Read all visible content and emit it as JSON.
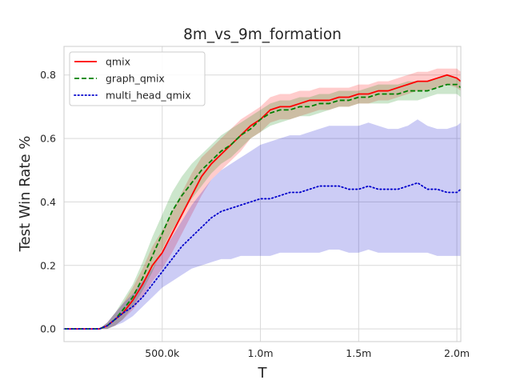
{
  "chart_data": {
    "type": "line",
    "title": "8m_vs_9m_formation",
    "xlabel": "T",
    "ylabel": "Test Win Rate %",
    "xlim": [
      0,
      2020000
    ],
    "ylim": [
      -0.04,
      0.89
    ],
    "grid": true,
    "legend_position": "top-left",
    "x_ticks": [
      {
        "value": 500000,
        "label": "500.0k"
      },
      {
        "value": 1000000,
        "label": "1.0m"
      },
      {
        "value": 1500000,
        "label": "1.5m"
      },
      {
        "value": 2000000,
        "label": "2.0m"
      }
    ],
    "y_ticks": [
      {
        "value": 0.0,
        "label": "0.0"
      },
      {
        "value": 0.2,
        "label": "0.2"
      },
      {
        "value": 0.4,
        "label": "0.4"
      },
      {
        "value": 0.6,
        "label": "0.6"
      },
      {
        "value": 0.8,
        "label": "0.8"
      }
    ],
    "x": [
      0,
      100000,
      180000,
      220000,
      260000,
      300000,
      350000,
      400000,
      450000,
      500000,
      550000,
      600000,
      650000,
      700000,
      750000,
      800000,
      850000,
      900000,
      950000,
      1000000,
      1050000,
      1100000,
      1150000,
      1200000,
      1250000,
      1300000,
      1350000,
      1400000,
      1450000,
      1500000,
      1550000,
      1600000,
      1650000,
      1700000,
      1750000,
      1800000,
      1850000,
      1900000,
      1950000,
      2000000,
      2020000
    ],
    "series": [
      {
        "name": "qmix",
        "color": "#ff0000",
        "dash": "solid",
        "values": [
          0.0,
          0.0,
          0.0,
          0.01,
          0.03,
          0.05,
          0.09,
          0.14,
          0.2,
          0.24,
          0.3,
          0.36,
          0.42,
          0.48,
          0.52,
          0.55,
          0.58,
          0.61,
          0.64,
          0.66,
          0.69,
          0.7,
          0.7,
          0.71,
          0.72,
          0.72,
          0.72,
          0.73,
          0.73,
          0.74,
          0.74,
          0.75,
          0.75,
          0.76,
          0.77,
          0.78,
          0.78,
          0.79,
          0.8,
          0.79,
          0.78
        ],
        "band_lower": [
          0.0,
          0.0,
          0.0,
          0.0,
          0.01,
          0.03,
          0.06,
          0.1,
          0.15,
          0.19,
          0.24,
          0.3,
          0.36,
          0.42,
          0.47,
          0.5,
          0.53,
          0.56,
          0.6,
          0.62,
          0.65,
          0.66,
          0.66,
          0.67,
          0.68,
          0.69,
          0.69,
          0.7,
          0.7,
          0.71,
          0.71,
          0.72,
          0.72,
          0.73,
          0.74,
          0.75,
          0.75,
          0.76,
          0.77,
          0.76,
          0.75
        ],
        "band_upper": [
          0.0,
          0.0,
          0.0,
          0.02,
          0.05,
          0.08,
          0.13,
          0.19,
          0.26,
          0.31,
          0.37,
          0.43,
          0.49,
          0.54,
          0.57,
          0.6,
          0.63,
          0.66,
          0.68,
          0.7,
          0.73,
          0.74,
          0.74,
          0.75,
          0.75,
          0.76,
          0.76,
          0.76,
          0.76,
          0.77,
          0.77,
          0.78,
          0.78,
          0.79,
          0.8,
          0.81,
          0.81,
          0.82,
          0.82,
          0.82,
          0.81
        ]
      },
      {
        "name": "graph_qmix",
        "color": "#008000",
        "dash": "dashed",
        "values": [
          0.0,
          0.0,
          0.0,
          0.01,
          0.03,
          0.06,
          0.1,
          0.16,
          0.23,
          0.3,
          0.37,
          0.42,
          0.46,
          0.5,
          0.53,
          0.56,
          0.58,
          0.61,
          0.63,
          0.66,
          0.68,
          0.69,
          0.69,
          0.7,
          0.7,
          0.71,
          0.71,
          0.72,
          0.72,
          0.73,
          0.73,
          0.74,
          0.74,
          0.74,
          0.75,
          0.75,
          0.75,
          0.76,
          0.77,
          0.77,
          0.76
        ],
        "band_lower": [
          0.0,
          0.0,
          0.0,
          0.0,
          0.01,
          0.03,
          0.07,
          0.12,
          0.18,
          0.25,
          0.31,
          0.36,
          0.41,
          0.45,
          0.49,
          0.52,
          0.54,
          0.57,
          0.6,
          0.62,
          0.64,
          0.65,
          0.66,
          0.67,
          0.67,
          0.68,
          0.69,
          0.7,
          0.7,
          0.71,
          0.71,
          0.71,
          0.71,
          0.72,
          0.72,
          0.72,
          0.73,
          0.74,
          0.74,
          0.74,
          0.73
        ],
        "band_upper": [
          0.0,
          0.0,
          0.0,
          0.02,
          0.05,
          0.09,
          0.14,
          0.21,
          0.29,
          0.36,
          0.43,
          0.48,
          0.52,
          0.55,
          0.58,
          0.61,
          0.63,
          0.65,
          0.67,
          0.69,
          0.71,
          0.72,
          0.72,
          0.73,
          0.73,
          0.74,
          0.74,
          0.75,
          0.75,
          0.75,
          0.76,
          0.77,
          0.77,
          0.77,
          0.78,
          0.78,
          0.78,
          0.79,
          0.8,
          0.79,
          0.78
        ]
      },
      {
        "name": "multi_head_qmix",
        "color": "#0000cc",
        "dash": "dotted",
        "values": [
          0.0,
          0.0,
          0.0,
          0.01,
          0.03,
          0.05,
          0.07,
          0.1,
          0.14,
          0.18,
          0.22,
          0.26,
          0.29,
          0.32,
          0.35,
          0.37,
          0.38,
          0.39,
          0.4,
          0.41,
          0.41,
          0.42,
          0.43,
          0.43,
          0.44,
          0.45,
          0.45,
          0.45,
          0.44,
          0.44,
          0.45,
          0.44,
          0.44,
          0.44,
          0.45,
          0.46,
          0.44,
          0.44,
          0.43,
          0.43,
          0.44
        ],
        "band_lower": [
          0.0,
          0.0,
          0.0,
          0.0,
          0.01,
          0.02,
          0.04,
          0.07,
          0.1,
          0.13,
          0.15,
          0.17,
          0.19,
          0.2,
          0.21,
          0.22,
          0.22,
          0.23,
          0.23,
          0.23,
          0.23,
          0.24,
          0.24,
          0.24,
          0.24,
          0.24,
          0.25,
          0.25,
          0.24,
          0.24,
          0.25,
          0.24,
          0.24,
          0.24,
          0.24,
          0.24,
          0.24,
          0.23,
          0.23,
          0.23,
          0.23
        ],
        "band_upper": [
          0.0,
          0.0,
          0.0,
          0.02,
          0.05,
          0.08,
          0.11,
          0.15,
          0.19,
          0.24,
          0.29,
          0.34,
          0.39,
          0.43,
          0.47,
          0.5,
          0.52,
          0.54,
          0.56,
          0.58,
          0.59,
          0.6,
          0.61,
          0.61,
          0.62,
          0.63,
          0.64,
          0.64,
          0.64,
          0.64,
          0.65,
          0.64,
          0.63,
          0.63,
          0.64,
          0.66,
          0.64,
          0.63,
          0.63,
          0.64,
          0.65
        ]
      }
    ]
  }
}
